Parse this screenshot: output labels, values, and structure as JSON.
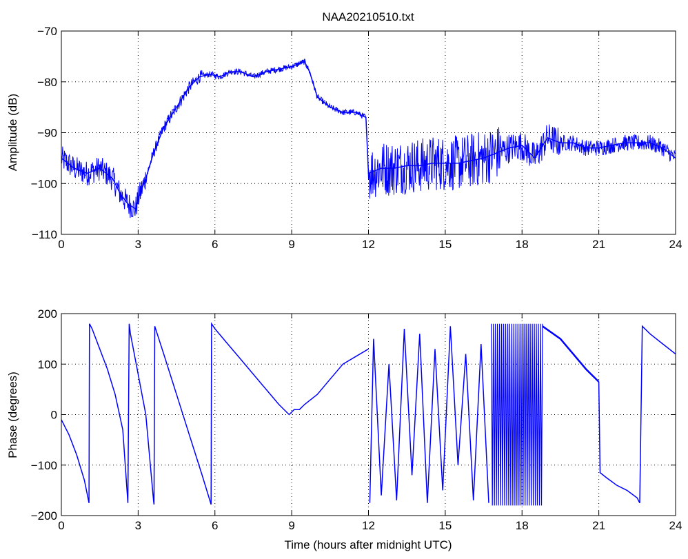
{
  "chart_data": [
    {
      "type": "line",
      "title": "NAA20210510.txt",
      "xlabel": "",
      "ylabel": "Amplitude (dB)",
      "xlim": [
        0,
        24
      ],
      "ylim": [
        -110,
        -70
      ],
      "xticks": [
        0,
        3,
        6,
        9,
        12,
        15,
        18,
        21,
        24
      ],
      "yticks": [
        -110,
        -100,
        -90,
        -80,
        -70
      ],
      "xtick_labels": [
        "0",
        "3",
        "6",
        "9",
        "12",
        "15",
        "18",
        "21",
        "24"
      ],
      "ytick_labels": [
        "−110",
        "−100",
        "−90",
        "−80",
        "−70"
      ],
      "grid": true,
      "grid_style": "dotted",
      "color": "#0000ff",
      "series": [
        {
          "x": [
            0,
            0.5,
            1,
            1.5,
            2,
            2.3,
            2.6,
            2.9,
            3.0,
            3.3,
            3.6,
            4.0,
            4.5,
            5.0,
            5.4,
            5.8,
            6.2,
            6.6,
            7.0,
            7.5,
            8.0,
            8.5,
            9.0,
            9.5,
            9.7,
            10.0,
            10.5,
            11.0,
            11.5,
            11.9,
            12.0,
            12.5,
            13,
            13.5,
            14,
            14.5,
            15,
            15.5,
            16,
            16.5,
            17,
            17.5,
            18,
            18.5,
            19,
            19.5,
            20,
            20.5,
            21,
            21.5,
            22,
            22.5,
            23,
            23.5,
            24
          ],
          "y": [
            -95,
            -97,
            -98,
            -97,
            -99,
            -102,
            -104,
            -105,
            -103,
            -99,
            -94,
            -89,
            -85,
            -81,
            -79,
            -78.5,
            -79,
            -78,
            -78,
            -79,
            -78,
            -77.5,
            -77,
            -76,
            -78,
            -83,
            -85,
            -86,
            -86,
            -87,
            -98,
            -97,
            -97,
            -96.5,
            -96.5,
            -96,
            -96,
            -96,
            -95.5,
            -95,
            -94,
            -93,
            -92.5,
            -95,
            -91,
            -92,
            -92,
            -93,
            -93,
            -92.5,
            -92,
            -92,
            -92,
            -93,
            -95
          ]
        }
      ]
    },
    {
      "type": "line",
      "title": "",
      "xlabel": "Time (hours after midnight UTC)",
      "ylabel": "Phase (degrees)",
      "xlim": [
        0,
        24
      ],
      "ylim": [
        -200,
        200
      ],
      "xticks": [
        0,
        3,
        6,
        9,
        12,
        15,
        18,
        21,
        24
      ],
      "yticks": [
        -200,
        -100,
        0,
        100,
        200
      ],
      "xtick_labels": [
        "0",
        "3",
        "6",
        "9",
        "12",
        "15",
        "18",
        "21",
        "24"
      ],
      "ytick_labels": [
        "−200",
        "−100",
        "0",
        "100",
        "200"
      ],
      "grid": true,
      "grid_style": "dotted",
      "color": "#0000ff",
      "series": [
        {
          "x": [
            0,
            0.3,
            0.6,
            0.9,
            1.08,
            1.1,
            1.2,
            1.5,
            1.8,
            2.1,
            2.4,
            2.6,
            2.65,
            2.7,
            3.0,
            3.3,
            3.6,
            3.62,
            3.65,
            4.0,
            4.5,
            5.0,
            5.5,
            5.85,
            5.87,
            6.0,
            6.5,
            7.0,
            7.5,
            8.0,
            8.5,
            8.9,
            9.1,
            9.3,
            9.5,
            10.0,
            10.5,
            11.0,
            11.5,
            12.0
          ],
          "y": [
            -10,
            -40,
            -80,
            -130,
            -175,
            180,
            170,
            130,
            90,
            40,
            -30,
            -175,
            180,
            160,
            80,
            0,
            -170,
            -178,
            175,
            120,
            40,
            -40,
            -120,
            -178,
            180,
            170,
            140,
            110,
            80,
            50,
            20,
            0,
            10,
            10,
            20,
            40,
            70,
            100,
            115,
            130
          ]
        },
        {
          "x": [
            12.05,
            12.2,
            12.5,
            12.8,
            13.1,
            13.4,
            13.7,
            14.0,
            14.3,
            14.6,
            14.9,
            15.2,
            15.5,
            15.8,
            16.1,
            16.4,
            16.7
          ],
          "y": [
            -175,
            150,
            -160,
            100,
            -170,
            170,
            -120,
            160,
            -175,
            130,
            -150,
            175,
            -100,
            120,
            -170,
            140,
            -175
          ]
        },
        {
          "x": [
            21.0,
            21.05,
            21.3,
            21.7,
            22.1,
            22.5,
            22.6,
            22.7,
            23.0,
            23.5,
            24.0
          ],
          "y": [
            65,
            -115,
            -125,
            -140,
            -150,
            -165,
            -175,
            175,
            160,
            140,
            120
          ]
        }
      ],
      "band": {
        "x": [
          16.8,
          18.8
        ],
        "y": [
          -180,
          180
        ]
      },
      "trend_after_band": {
        "x": [
          18.8,
          19.5,
          20.0,
          20.5,
          21.0
        ],
        "y": [
          175,
          150,
          120,
          90,
          65
        ]
      }
    }
  ]
}
